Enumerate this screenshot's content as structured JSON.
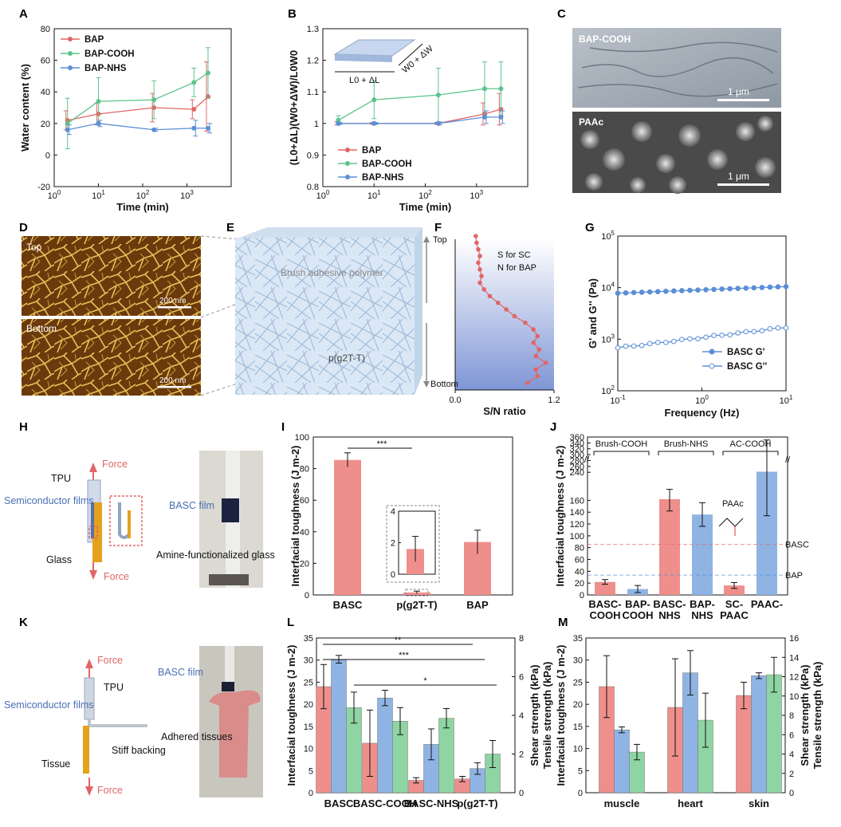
{
  "colors": {
    "red": "#e06666",
    "green": "#5cc48a",
    "blue": "#5b8fd6",
    "bar_red": "#ef8f8c",
    "bar_blue": "#8fb4e3",
    "bar_green": "#8fd4a3"
  },
  "panel_labels": [
    "A",
    "B",
    "C",
    "D",
    "E",
    "F",
    "G",
    "H",
    "I",
    "J",
    "K",
    "L",
    "M"
  ],
  "panels": {
    "C": {
      "top_label": "BAP-COOH",
      "bottom_label": "PAAc",
      "scale": "1 μm"
    },
    "D": {
      "top": "Top",
      "bottom": "Bottom",
      "scale": "200 nm"
    },
    "E": {
      "label1": "Brush adhesive polymer",
      "label2": "p(g2T-T)"
    },
    "H": {
      "force": "Force",
      "tpu": "TPU",
      "semi": "Semiconductor films",
      "glass": "Glass",
      "photo_film": "BASC film",
      "photo_glass": "Amine-functionalized glass"
    },
    "K": {
      "force": "Force",
      "tpu": "TPU",
      "semi": "Semiconductor films",
      "tissue": "Tissue",
      "backing": "Stiff backing",
      "photo_film": "BASC film",
      "photo_tissue": "Adhered tissues"
    }
  },
  "chart_data": [
    {
      "id": "A",
      "type": "line",
      "xlabel": "Time (min)",
      "ylabel": "Water content (%)",
      "xscale": "log",
      "xlim": [
        1,
        10000
      ],
      "ylim": [
        -20,
        80
      ],
      "xticks": [
        "10^0",
        "10^1",
        "10^2",
        "10^3"
      ],
      "yticks": [
        -20,
        0,
        20,
        40,
        60,
        80
      ],
      "x": [
        2,
        10,
        180,
        1440,
        3000
      ],
      "series": [
        {
          "name": "BAP",
          "values": [
            22,
            26,
            30,
            29,
            37
          ],
          "err": [
            6,
            7,
            9,
            6,
            22
          ]
        },
        {
          "name": "BAP-COOH",
          "values": [
            20,
            34,
            35,
            46,
            52
          ],
          "err": [
            16,
            15,
            12,
            9,
            16
          ]
        },
        {
          "name": "BAP-NHS",
          "values": [
            16,
            20,
            16,
            17,
            17
          ],
          "err": [
            3,
            2,
            1,
            5,
            3
          ]
        }
      ],
      "legend": "top-left"
    },
    {
      "id": "B",
      "type": "line",
      "xlabel": "Time (min)",
      "ylabel": "(L0+ΔL)(W0+ΔW)/L0W0",
      "xscale": "log",
      "xlim": [
        1,
        10000
      ],
      "ylim": [
        0.8,
        1.3
      ],
      "xticks": [
        "10^0",
        "10^1",
        "10^2",
        "10^3"
      ],
      "yticks": [
        0.8,
        0.9,
        1.0,
        1.1,
        1.2,
        1.3
      ],
      "inset_labels": [
        "L0 + ΔL",
        "W0 + ΔW"
      ],
      "x": [
        2,
        10,
        180,
        1440,
        3000
      ],
      "series": [
        {
          "name": "BAP",
          "values": [
            1.0,
            1.0,
            1.0,
            1.03,
            1.045
          ],
          "err": [
            0.005,
            0.003,
            0.003,
            0.035,
            0.05
          ]
        },
        {
          "name": "BAP-COOH",
          "values": [
            1.01,
            1.075,
            1.09,
            1.11,
            1.11
          ],
          "err": [
            0.015,
            0.06,
            0.085,
            0.085,
            0.085
          ]
        },
        {
          "name": "BAP-NHS",
          "values": [
            1.0,
            1.0,
            1.0,
            1.02,
            1.02
          ],
          "err": [
            0.003,
            0.003,
            0.005,
            0.02,
            0.02
          ]
        }
      ],
      "legend": "bottom-left"
    },
    {
      "id": "F",
      "type": "line",
      "xlabel": "S/N ratio",
      "xlim": [
        0.0,
        1.2
      ],
      "xticks": [
        0.0,
        1.2
      ],
      "ylabel_top": "Top",
      "ylabel_bottom": "Bottom",
      "notes": [
        "S for SC",
        "N for BAP"
      ],
      "x": [
        0.25,
        0.26,
        0.28,
        0.3,
        0.28,
        0.3,
        0.32,
        0.3,
        0.35,
        0.42,
        0.52,
        0.62,
        0.72,
        0.85,
        0.95,
        1.0,
        0.95,
        1.02,
        0.98,
        1.1,
        0.98,
        1.0,
        0.88
      ],
      "depth": [
        0,
        1,
        2,
        3,
        4,
        5,
        6,
        7,
        8,
        9,
        10,
        11,
        12,
        13,
        14,
        15,
        16,
        17,
        18,
        19,
        20,
        21,
        22
      ]
    },
    {
      "id": "G",
      "type": "line",
      "xlabel": "Frequency (Hz)",
      "ylabel": "G' and G'' (Pa)",
      "xscale": "log",
      "yscale": "log",
      "xlim": [
        0.1,
        10
      ],
      "ylim": [
        100,
        100000
      ],
      "xticks": [
        "10^-1",
        "10^0",
        "10^1"
      ],
      "yticks": [
        "10^2",
        "10^3",
        "10^4",
        "10^5"
      ],
      "series": [
        {
          "name": "BASC G'",
          "x0": 0.1,
          "x1": 10,
          "y0": 7800,
          "y1": 10500
        },
        {
          "name": "BASC G''",
          "x0": 0.1,
          "x1": 10,
          "y0": 680,
          "y1": 1700
        }
      ],
      "legend": "bottom-right"
    },
    {
      "id": "I",
      "type": "bar",
      "ylabel": "Interfacial toughness (J m-2)",
      "categories": [
        "BASC",
        "p(g2T-T)",
        "BAP"
      ],
      "values": [
        85.5,
        1.6,
        33.5
      ],
      "err": [
        4.5,
        0.8,
        7.5
      ],
      "ylim": [
        0,
        100
      ],
      "yticks": [
        0,
        20,
        40,
        60,
        80,
        100
      ],
      "significance": "***",
      "inset": {
        "ylim": [
          0,
          4
        ],
        "yticks": [
          0,
          2,
          4
        ],
        "value": 1.6,
        "err": 0.8
      }
    },
    {
      "id": "J",
      "type": "bar",
      "ylabel": "Interfacial toughness (J m-2)",
      "categories": [
        "BASC-COOH",
        "BAP-COOH",
        "BASC-NHS",
        "BAP-NHS",
        "SC-PAAC",
        "PAAC"
      ],
      "groups": [
        "Brush-COOH",
        "Brush-NHS",
        "AC-COOH"
      ],
      "values": [
        22,
        10,
        162,
        136,
        16,
        242
      ],
      "err": [
        4,
        6,
        20,
        20,
        5,
        108
      ],
      "ylim": [
        0,
        360
      ],
      "yticks": [
        0,
        20,
        40,
        60,
        80,
        100,
        120,
        140,
        160,
        180,
        200,
        220,
        240,
        260,
        280,
        300,
        320,
        340,
        360
      ],
      "reference_lines": [
        {
          "label": "BASC",
          "value": 85.5
        },
        {
          "label": "BAP",
          "value": 33.5
        }
      ],
      "annotation": "PAAc"
    },
    {
      "id": "L",
      "type": "bar",
      "categories": [
        "BASC",
        "BASC-COOH",
        "BASC-NHS",
        "p(g2T-T)"
      ],
      "ylabel_left": "Interfacial toughness (J m-2)",
      "ylabel_right1": "Shear strength (kPa)",
      "ylabel_right2": "Tensile strength (kPa)",
      "ylim_left": [
        0,
        35
      ],
      "ylim_right": [
        0,
        8
      ],
      "yticks_left": [
        0,
        5,
        10,
        15,
        20,
        25,
        30,
        35
      ],
      "yticks_right": [
        0,
        2,
        4,
        6,
        8
      ],
      "series": [
        {
          "name": "Interfacial toughness",
          "axis": "left",
          "values": [
            24,
            11.2,
            2.8,
            3.1
          ],
          "err": [
            5,
            7.5,
            0.6,
            0.6
          ]
        },
        {
          "name": "Shear strength",
          "axis": "right",
          "values": [
            6.9,
            4.9,
            2.5,
            1.25
          ],
          "err": [
            0.2,
            0.4,
            0.8,
            0.3
          ]
        },
        {
          "name": "Tensile strength",
          "axis": "right",
          "values": [
            4.4,
            3.7,
            3.85,
            2.0
          ],
          "err": [
            0.8,
            0.7,
            0.5,
            0.7
          ]
        }
      ],
      "significance": [
        "**",
        "***",
        "*"
      ]
    },
    {
      "id": "M",
      "type": "bar",
      "categories": [
        "muscle",
        "heart",
        "skin"
      ],
      "ylabel_left": "Interfacial toughness (J m-2)",
      "ylabel_right1": "Shear strength (kPa)",
      "ylabel_right2": "Tensile strength (kPa)",
      "ylim_left": [
        0,
        35
      ],
      "ylim_right": [
        0,
        16
      ],
      "yticks_left": [
        0,
        5,
        10,
        15,
        20,
        25,
        30,
        35
      ],
      "yticks_right": [
        0,
        2,
        4,
        6,
        8,
        10,
        12,
        14,
        16
      ],
      "series": [
        {
          "name": "Interfacial toughness",
          "axis": "left",
          "values": [
            24,
            19.3,
            22
          ],
          "err": [
            7,
            11,
            3
          ]
        },
        {
          "name": "Shear strength",
          "axis": "right",
          "values": [
            6.5,
            12.4,
            12.1
          ],
          "err": [
            0.3,
            2.3,
            0.3
          ]
        },
        {
          "name": "Tensile strength",
          "axis": "right",
          "values": [
            4.2,
            7.5,
            12.2
          ],
          "err": [
            0.8,
            2.8,
            1.8
          ]
        }
      ]
    }
  ]
}
